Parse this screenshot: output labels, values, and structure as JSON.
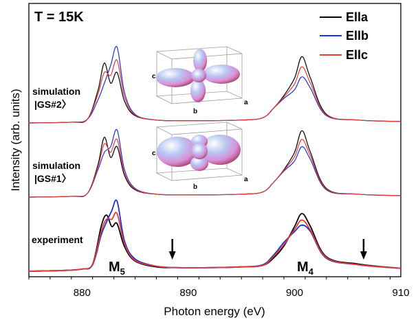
{
  "chart_data": {
    "type": "line",
    "title": "T = 15K",
    "xlabel": "Photon energy (eV)",
    "ylabel": "Intensity (arb. units)",
    "xlim": [
      875,
      910
    ],
    "xticks": [
      880,
      890,
      900,
      910
    ],
    "yticks_shown": false,
    "legend_position": "top-right",
    "colors": {
      "Ella": "#000000",
      "Ellb": "#1f2fd8",
      "Ellc": "#e33b35"
    },
    "legend": [
      "Ella",
      "Ellb",
      "Ellc"
    ],
    "panels": [
      {
        "label_line1": "experiment",
        "label_line2": "",
        "baseline": 0.0,
        "amplitude": 1.0,
        "series": [
          {
            "name": "Ella",
            "values": [
              [
                875,
                0.0
              ],
              [
                878,
                0.01
              ],
              [
                880,
                0.03
              ],
              [
                881,
                0.1
              ],
              [
                881.8,
                0.62
              ],
              [
                882.3,
                0.78
              ],
              [
                882.8,
                0.62
              ],
              [
                883.3,
                0.66
              ],
              [
                884,
                0.34
              ],
              [
                885,
                0.14
              ],
              [
                887,
                0.06
              ],
              [
                889,
                0.05
              ],
              [
                892,
                0.05
              ],
              [
                895,
                0.06
              ],
              [
                897,
                0.08
              ],
              [
                898,
                0.18
              ],
              [
                899,
                0.35
              ],
              [
                900,
                0.62
              ],
              [
                900.7,
                0.8
              ],
              [
                901.5,
                0.62
              ],
              [
                903,
                0.2
              ],
              [
                906,
                0.1
              ],
              [
                910,
                0.04
              ]
            ]
          },
          {
            "name": "Ellb",
            "values": [
              [
                875,
                0.0
              ],
              [
                878,
                0.01
              ],
              [
                880,
                0.03
              ],
              [
                881,
                0.09
              ],
              [
                881.8,
                0.5
              ],
              [
                882.3,
                0.68
              ],
              [
                882.8,
                0.84
              ],
              [
                883.3,
                0.97
              ],
              [
                884,
                0.42
              ],
              [
                885,
                0.17
              ],
              [
                887,
                0.07
              ],
              [
                889,
                0.05
              ],
              [
                892,
                0.05
              ],
              [
                895,
                0.06
              ],
              [
                897,
                0.09
              ],
              [
                898,
                0.22
              ],
              [
                899,
                0.4
              ],
              [
                900,
                0.55
              ],
              [
                900.7,
                0.64
              ],
              [
                901.5,
                0.55
              ],
              [
                903,
                0.18
              ],
              [
                906,
                0.09
              ],
              [
                910,
                0.04
              ]
            ]
          },
          {
            "name": "Ellc",
            "values": [
              [
                875,
                0.0
              ],
              [
                878,
                0.01
              ],
              [
                880,
                0.03
              ],
              [
                881,
                0.1
              ],
              [
                881.8,
                0.55
              ],
              [
                882.3,
                0.72
              ],
              [
                882.8,
                0.72
              ],
              [
                883.3,
                0.8
              ],
              [
                884,
                0.38
              ],
              [
                885,
                0.15
              ],
              [
                887,
                0.07
              ],
              [
                889,
                0.05
              ],
              [
                892,
                0.05
              ],
              [
                895,
                0.06
              ],
              [
                897,
                0.08
              ],
              [
                898,
                0.2
              ],
              [
                899,
                0.37
              ],
              [
                900,
                0.58
              ],
              [
                900.7,
                0.71
              ],
              [
                901.5,
                0.57
              ],
              [
                903,
                0.19
              ],
              [
                906,
                0.09
              ],
              [
                910,
                0.04
              ]
            ]
          }
        ]
      },
      {
        "label_line1": "simulation",
        "label_line2": "|GS#1〉",
        "baseline": 1.0,
        "amplitude": 1.0,
        "series": [
          {
            "name": "Ella",
            "values": [
              [
                875,
                0.0
              ],
              [
                879,
                0.01
              ],
              [
                880.5,
                0.05
              ],
              [
                881.5,
                0.45
              ],
              [
                882.1,
                0.83
              ],
              [
                882.7,
                0.55
              ],
              [
                883.3,
                0.7
              ],
              [
                884,
                0.3
              ],
              [
                885,
                0.1
              ],
              [
                887,
                0.04
              ],
              [
                890,
                0.03
              ],
              [
                895,
                0.04
              ],
              [
                897,
                0.07
              ],
              [
                898,
                0.2
              ],
              [
                899,
                0.38
              ],
              [
                900,
                0.62
              ],
              [
                900.7,
                0.92
              ],
              [
                901.5,
                0.62
              ],
              [
                903,
                0.12
              ],
              [
                906,
                0.04
              ],
              [
                910,
                0.02
              ]
            ]
          },
          {
            "name": "Ellb",
            "values": [
              [
                875,
                0.0
              ],
              [
                879,
                0.01
              ],
              [
                880.5,
                0.05
              ],
              [
                881.5,
                0.38
              ],
              [
                882.1,
                0.62
              ],
              [
                882.7,
                0.7
              ],
              [
                883.3,
                0.93
              ],
              [
                884,
                0.38
              ],
              [
                885,
                0.12
              ],
              [
                887,
                0.04
              ],
              [
                890,
                0.03
              ],
              [
                895,
                0.04
              ],
              [
                897,
                0.07
              ],
              [
                898,
                0.2
              ],
              [
                899,
                0.36
              ],
              [
                900,
                0.5
              ],
              [
                900.7,
                0.7
              ],
              [
                901.5,
                0.52
              ],
              [
                903,
                0.1
              ],
              [
                906,
                0.04
              ],
              [
                910,
                0.02
              ]
            ]
          },
          {
            "name": "Ellc",
            "values": [
              [
                875,
                0.0
              ],
              [
                879,
                0.01
              ],
              [
                880.5,
                0.05
              ],
              [
                881.5,
                0.42
              ],
              [
                882.1,
                0.74
              ],
              [
                882.7,
                0.62
              ],
              [
                883.3,
                0.8
              ],
              [
                884,
                0.33
              ],
              [
                885,
                0.11
              ],
              [
                887,
                0.04
              ],
              [
                890,
                0.03
              ],
              [
                895,
                0.04
              ],
              [
                897,
                0.07
              ],
              [
                898,
                0.2
              ],
              [
                899,
                0.37
              ],
              [
                900,
                0.56
              ],
              [
                900.7,
                0.8
              ],
              [
                901.5,
                0.57
              ],
              [
                903,
                0.11
              ],
              [
                906,
                0.04
              ],
              [
                910,
                0.02
              ]
            ]
          }
        ]
      },
      {
        "label_line1": "simulation",
        "label_line2": "|GS#2〉",
        "baseline": 2.0,
        "amplitude": 1.0,
        "series": [
          {
            "name": "Ella",
            "values": [
              [
                875,
                0.0
              ],
              [
                879,
                0.01
              ],
              [
                880.5,
                0.05
              ],
              [
                881.5,
                0.45
              ],
              [
                882.1,
                0.83
              ],
              [
                882.7,
                0.55
              ],
              [
                883.3,
                0.7
              ],
              [
                884,
                0.3
              ],
              [
                885,
                0.1
              ],
              [
                887,
                0.04
              ],
              [
                890,
                0.03
              ],
              [
                895,
                0.04
              ],
              [
                897,
                0.07
              ],
              [
                898,
                0.2
              ],
              [
                899,
                0.38
              ],
              [
                900,
                0.62
              ],
              [
                900.7,
                0.92
              ],
              [
                901.5,
                0.62
              ],
              [
                903,
                0.12
              ],
              [
                906,
                0.04
              ],
              [
                910,
                0.02
              ]
            ]
          },
          {
            "name": "Ellb",
            "values": [
              [
                875,
                0.0
              ],
              [
                879,
                0.01
              ],
              [
                880.5,
                0.05
              ],
              [
                881.5,
                0.32
              ],
              [
                882.1,
                0.55
              ],
              [
                882.7,
                0.8
              ],
              [
                883.3,
                1.05
              ],
              [
                884,
                0.42
              ],
              [
                885,
                0.12
              ],
              [
                887,
                0.04
              ],
              [
                890,
                0.03
              ],
              [
                895,
                0.04
              ],
              [
                897,
                0.07
              ],
              [
                898,
                0.2
              ],
              [
                899,
                0.34
              ],
              [
                900,
                0.46
              ],
              [
                900.7,
                0.64
              ],
              [
                901.5,
                0.48
              ],
              [
                903,
                0.1
              ],
              [
                906,
                0.04
              ],
              [
                910,
                0.02
              ]
            ]
          },
          {
            "name": "Ellc",
            "values": [
              [
                875,
                0.0
              ],
              [
                879,
                0.01
              ],
              [
                880.5,
                0.05
              ],
              [
                881.5,
                0.4
              ],
              [
                882.1,
                0.7
              ],
              [
                882.7,
                0.66
              ],
              [
                883.3,
                0.87
              ],
              [
                884,
                0.36
              ],
              [
                885,
                0.11
              ],
              [
                887,
                0.04
              ],
              [
                890,
                0.03
              ],
              [
                895,
                0.04
              ],
              [
                897,
                0.07
              ],
              [
                898,
                0.2
              ],
              [
                899,
                0.36
              ],
              [
                900,
                0.54
              ],
              [
                900.7,
                0.78
              ],
              [
                901.5,
                0.55
              ],
              [
                903,
                0.11
              ],
              [
                906,
                0.04
              ],
              [
                910,
                0.02
              ]
            ]
          }
        ]
      }
    ],
    "annotations": {
      "edge_left": "M",
      "edge_left_sub": "5",
      "edge_right": "M",
      "edge_right_sub": "4",
      "arrows_at": [
        888.5,
        906.5
      ]
    },
    "inset_axes": {
      "a": "a",
      "b": "b",
      "c": "c"
    }
  }
}
